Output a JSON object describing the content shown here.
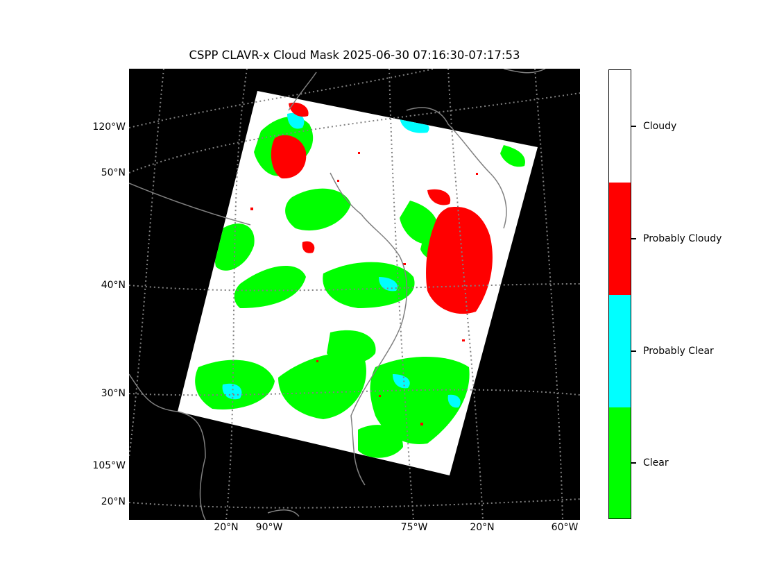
{
  "title": "CSPP CLAVR-x Cloud Mask 2025-06-30 07:16:30-07:17:53",
  "map": {
    "left_labels": [
      "120°W",
      "50°N",
      "40°N",
      "30°N",
      "105°W",
      "20°N"
    ],
    "bottom_labels": [
      "20°N",
      "90°W",
      "75°W",
      "20°N",
      "60°W"
    ],
    "background_color": "#000000",
    "gridline_color": "#808080",
    "coastline_color": "#808080"
  },
  "colorbar": {
    "categories": [
      {
        "label": "Cloudy",
        "color": "#ffffff"
      },
      {
        "label": "Probably Cloudy",
        "color": "#ff0000"
      },
      {
        "label": "Probably Clear",
        "color": "#00ffff"
      },
      {
        "label": "Clear",
        "color": "#00ff00"
      }
    ]
  }
}
